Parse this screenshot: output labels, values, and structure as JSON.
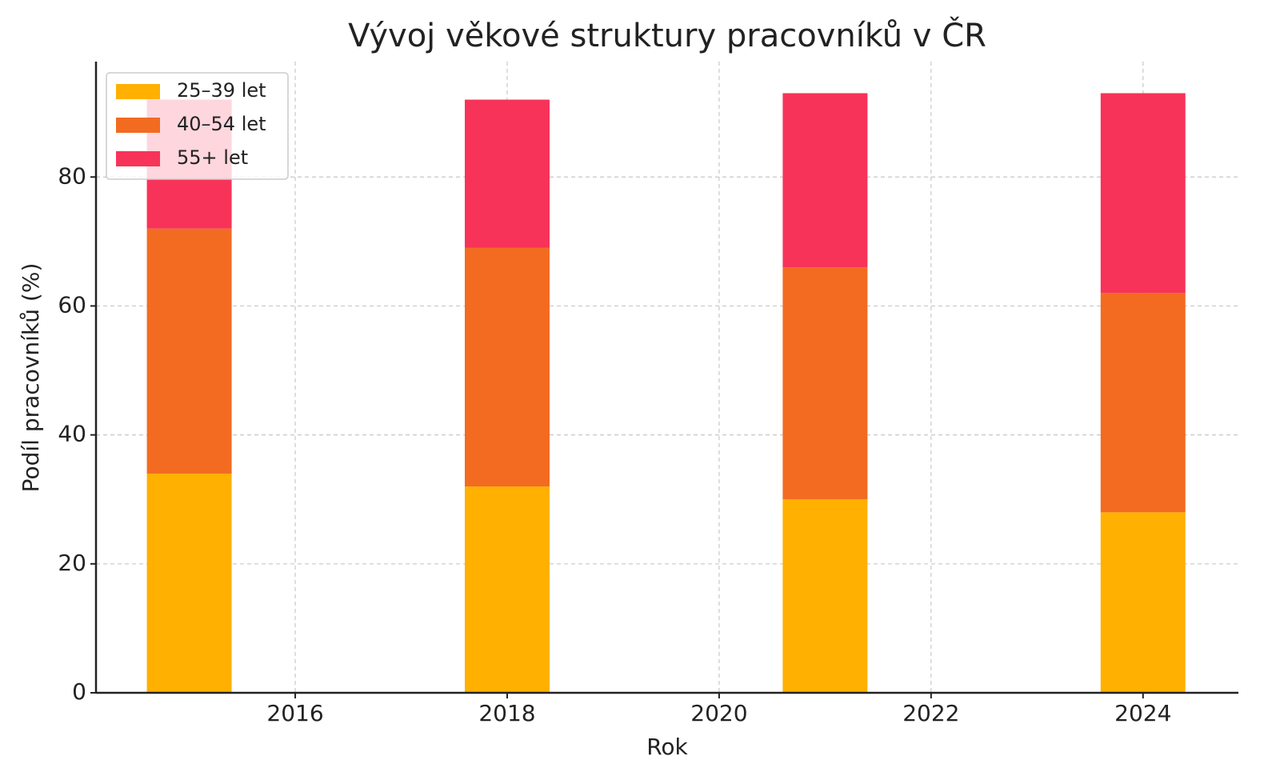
{
  "chart_data": {
    "type": "stacked_bar",
    "title": "Vývoj věkové struktury pracovníků v ČR",
    "xlabel": "Rok",
    "ylabel": "Podíl pracovníků (%)",
    "x": [
      2015,
      2018,
      2021,
      2024
    ],
    "series": [
      {
        "name": "25–39 let",
        "color": "#ffb000",
        "values": [
          34,
          32,
          30,
          28
        ]
      },
      {
        "name": "40–54 let",
        "color": "#f26b21",
        "values": [
          38,
          37,
          36,
          34
        ]
      },
      {
        "name": "55+ let",
        "color": "#f73359",
        "values": [
          20,
          23,
          27,
          31
        ]
      }
    ],
    "xlim": [
      2014.12,
      2024.9
    ],
    "xticks": [
      2016,
      2018,
      2020,
      2022,
      2024
    ],
    "ylim": [
      0,
      97.9
    ],
    "yticks": [
      0,
      20,
      40,
      60,
      80
    ],
    "grid": true,
    "legend": "upper-left"
  }
}
